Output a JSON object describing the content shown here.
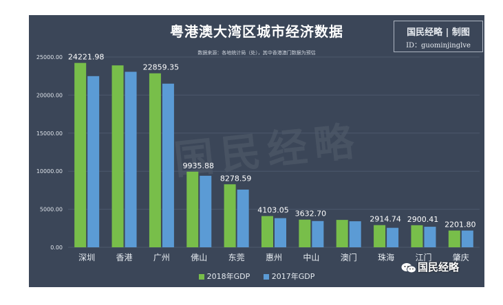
{
  "header": {
    "title": "粤港澳大湾区城市经济数据",
    "subtitle": "数据来源：各地统计局（处），其中香港澳门数据为预估"
  },
  "brand": {
    "name": "国民经略 | 制图",
    "id": "ID：guominjinglve"
  },
  "watermark": {
    "text": "国民经略"
  },
  "wechat": {
    "label": "国民经略",
    "icon": "wechat-icon"
  },
  "colors": {
    "background": "#3b4658",
    "series_2018": "#78be4a",
    "series_2017": "#5b9bd5"
  },
  "chart_data": {
    "type": "bar",
    "title": "粤港澳大湾区城市经济数据",
    "categories": [
      "深圳",
      "香港",
      "广州",
      "佛山",
      "东莞",
      "惠州",
      "中山",
      "澳门",
      "珠海",
      "江门",
      "肇庆"
    ],
    "series": [
      {
        "name": "2018年GDP",
        "values": [
          24221.98,
          23900,
          22859.35,
          9935.88,
          8278.59,
          4103.05,
          3632.7,
          3600,
          2914.74,
          2900.41,
          2201.8
        ]
      },
      {
        "name": "2017年GDP",
        "values": [
          22490,
          23060,
          21500,
          9400,
          7580,
          3830,
          3450,
          3420,
          2560,
          2700,
          2200
        ]
      }
    ],
    "data_labels": [
      "24221.98",
      "",
      "22859.35",
      "9935.88",
      "8278.59",
      "4103.05",
      "3632.70",
      "",
      "2914.74",
      "2900.41",
      "2201.80"
    ],
    "y_ticks": [
      "0.00",
      "5000.00",
      "10000.00",
      "15000.00",
      "20000.00",
      "25000.00"
    ],
    "ylim": [
      0,
      25000
    ],
    "grid": true,
    "legend": "bottom"
  }
}
